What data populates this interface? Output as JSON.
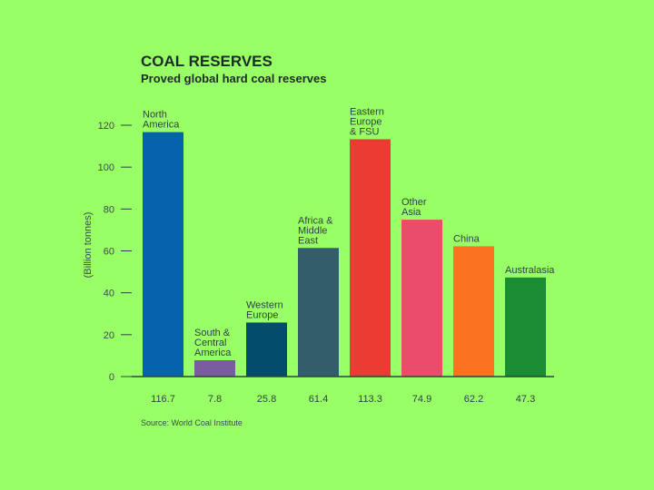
{
  "chart_data": {
    "type": "bar",
    "title": "COAL RESERVES",
    "subtitle": "Proved global hard coal reserves",
    "ylabel": "(Billion tonnes)",
    "xlabel": "",
    "ylim": [
      0,
      120
    ],
    "yticks": [
      0,
      20,
      40,
      60,
      80,
      100,
      120
    ],
    "grid": false,
    "categories": [
      [
        "North",
        "America"
      ],
      [
        "South &",
        "Central",
        "America"
      ],
      [
        "Western",
        "Europe"
      ],
      [
        "Africa &",
        "Middle",
        "East"
      ],
      [
        "Eastern",
        "Europe",
        "& FSU"
      ],
      [
        "Other",
        "Asia"
      ],
      [
        "China"
      ],
      [
        "Australasia"
      ]
    ],
    "values": [
      116.7,
      7.8,
      25.8,
      61.4,
      113.3,
      74.9,
      62.2,
      47.3
    ],
    "value_labels": [
      "116.7",
      "7.8",
      "25.8",
      "61.4",
      "113.3",
      "74.9",
      "62.2",
      "47.3"
    ],
    "colors": [
      "#0562ad",
      "#7b5c9c",
      "#044c6c",
      "#325e6c",
      "#eb3b33",
      "#e94d6b",
      "#fb7220",
      "#1a8c33"
    ],
    "source": "Source: World Coal Institute"
  }
}
